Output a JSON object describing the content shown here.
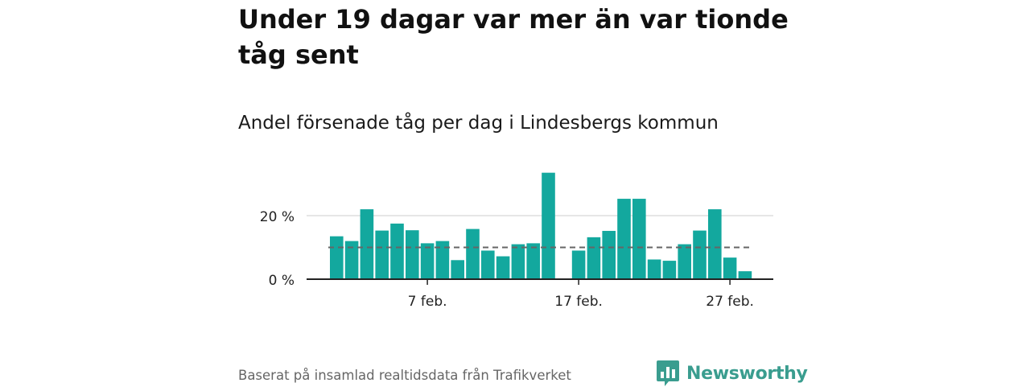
{
  "title": "Under 19 dagar var mer än var tionde tåg sent",
  "subtitle": "Andel försenade tåg per dag i Lindesbergs kommun",
  "footer": "Baserat på insamlad realtidsdata från Trafikverket",
  "brand": {
    "name": "Newsworthy",
    "color": "#3a9d8f",
    "icon": "bar-chart-logo-icon"
  },
  "colors": {
    "bar": "#13a89e",
    "grid": "#dddddd",
    "reference": "#666666",
    "axis": "#222222"
  },
  "chart_data": {
    "type": "bar",
    "x": [
      1,
      2,
      3,
      4,
      5,
      6,
      7,
      8,
      9,
      10,
      11,
      12,
      13,
      14,
      15,
      16,
      17,
      18,
      19,
      20,
      21,
      22,
      23,
      24,
      25,
      26,
      27,
      28
    ],
    "values": [
      13.5,
      12,
      22,
      15.3,
      17.5,
      15.4,
      11.3,
      12,
      6,
      15.8,
      9,
      7.2,
      11,
      11.3,
      33.5,
      null,
      9,
      13.2,
      15.2,
      25.3,
      25.3,
      6.2,
      5.8,
      11,
      15.3,
      22,
      6.8,
      2.5
    ],
    "x_unit": "day of February",
    "xticks": [
      {
        "x": 7,
        "label": "7 feb."
      },
      {
        "x": 17,
        "label": "17 feb."
      },
      {
        "x": 27,
        "label": "27 feb."
      }
    ],
    "yticks": [
      {
        "value": 0,
        "label": "0 %"
      },
      {
        "value": 20,
        "label": "20 %"
      }
    ],
    "ylim": [
      0,
      35
    ],
    "reference_line": {
      "value": 10,
      "style": "dashed"
    },
    "grid": true
  }
}
